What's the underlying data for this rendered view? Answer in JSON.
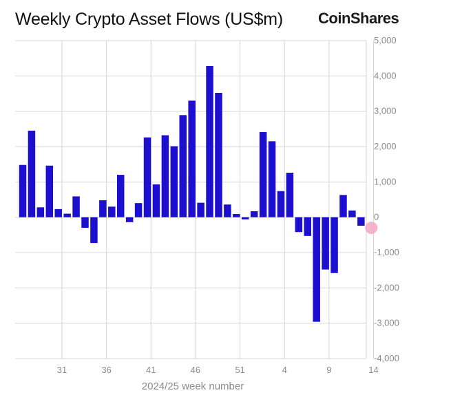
{
  "header": {
    "title": "Weekly Crypto Asset Flows (US$m)",
    "brand": "CoinShares"
  },
  "colors": {
    "bar": "#1d0fd0",
    "grid": "#d4d4d4",
    "marker": "#f2a7c4",
    "text": "#8a8a8a"
  },
  "chart_data": {
    "type": "bar",
    "title": "Weekly Crypto Asset Flows (US$m)",
    "xlabel": "2024/25 week number",
    "ylabel": "",
    "ylim": [
      -4000,
      5000
    ],
    "y_ticks": [
      5000,
      4000,
      3000,
      2000,
      1000,
      0,
      -1000,
      -2000,
      -3000,
      -4000
    ],
    "y_tick_labels": [
      "5,000",
      "4,000",
      "3,000",
      "2,000",
      "1,000",
      "0",
      "-1,000",
      "-2,000",
      "-3,000",
      "-4,000"
    ],
    "x_tick_labels": [
      "31",
      "36",
      "41",
      "46",
      "51",
      "4",
      "9",
      "14"
    ],
    "y_axis_position": "right",
    "grid": true,
    "categories": [
      "27",
      "28",
      "29",
      "30",
      "31",
      "32",
      "33",
      "34",
      "35",
      "36",
      "37",
      "38",
      "39",
      "40",
      "41",
      "42",
      "43",
      "44",
      "45",
      "46",
      "47",
      "48",
      "49",
      "50",
      "51",
      "52",
      "1",
      "2",
      "3",
      "4",
      "5",
      "6",
      "7",
      "8",
      "9",
      "10",
      "11",
      "12",
      "13",
      "14"
    ],
    "values": [
      1480,
      2450,
      280,
      1460,
      230,
      100,
      590,
      -300,
      -730,
      480,
      300,
      1200,
      -140,
      400,
      2260,
      930,
      2320,
      2010,
      2890,
      3300,
      410,
      4280,
      3520,
      360,
      90,
      -60,
      170,
      2410,
      2150,
      740,
      1260,
      -420,
      -530,
      -2960,
      -1480,
      -1580,
      630,
      190,
      -240,
      0
    ],
    "annotations": [
      {
        "type": "marker",
        "category": "14",
        "value": -300
      }
    ]
  }
}
